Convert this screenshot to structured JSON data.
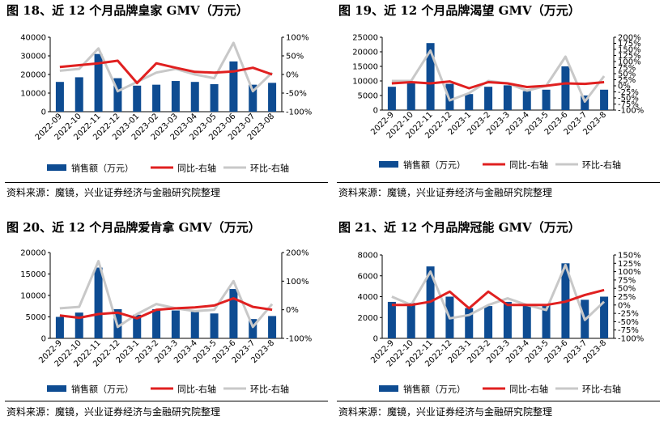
{
  "panels": [
    {
      "figure_title": "图 18、近 12 个月品牌皇家 GMV（万元）",
      "source": "资料来源：魔镜，兴业证券经济与金融研究院整理"
    },
    {
      "figure_title": "图 19、近 12 个月品牌渴望 GMV（万元）",
      "source": "资料来源：魔镜，兴业证券经济与金融研究院整理"
    },
    {
      "figure_title": "图 20、近 12 个月品牌爱肯拿 GMV（万元）",
      "source": "资料来源：魔镜，兴业证券经济与金融研究院整理"
    },
    {
      "figure_title": "图 21、近 12 个月品牌冠能 GMV（万元）",
      "source": "资料来源：魔镜，兴业证券经济与金融研究院整理"
    }
  ],
  "colors": {
    "bar": "#0e4c92",
    "yoy": "#e02020",
    "mom": "#c8c8c8"
  },
  "chart_data": [
    {
      "type": "bar",
      "categories": [
        "2022-09",
        "2022-10",
        "2022-11",
        "2022-12",
        "2023-01",
        "2023-02",
        "2023-03",
        "2023-04",
        "2023-05",
        "2023-06",
        "2023-07",
        "2023-08"
      ],
      "ylim": [
        0,
        40000
      ],
      "yticks": [
        "0",
        "10000",
        "20000",
        "30000",
        "40000"
      ],
      "y2lim": [
        -100,
        100
      ],
      "y2ticks": [
        "-100%",
        "-50%",
        "0%",
        "50%",
        "100%"
      ],
      "series": [
        {
          "name": "销售额（万元）",
          "kind": "bar",
          "axis": "left",
          "values": [
            16000,
            18500,
            31000,
            18000,
            14000,
            14500,
            16500,
            16000,
            14800,
            27000,
            14500,
            15500
          ]
        },
        {
          "name": "同比-右轴",
          "kind": "line",
          "axis": "right",
          "values": [
            20,
            25,
            30,
            37,
            -23,
            30,
            18,
            7,
            5,
            8,
            18,
            0
          ]
        },
        {
          "name": "环比-右轴",
          "kind": "line",
          "axis": "right",
          "values": [
            10,
            15,
            70,
            -45,
            -20,
            5,
            15,
            0,
            -10,
            85,
            -45,
            5
          ]
        }
      ]
    },
    {
      "type": "bar",
      "categories": [
        "2022-9",
        "2022-10",
        "2022-11",
        "2022-12",
        "2023-1",
        "2023-2",
        "2023-3",
        "2023-4",
        "2023-5",
        "2023-6",
        "2023-7",
        "2023-8"
      ],
      "ylim": [
        0,
        25000
      ],
      "yticks": [
        "0",
        "5000",
        "10000",
        "15000",
        "20000",
        "25000"
      ],
      "y2lim": [
        -100,
        200
      ],
      "y2ticks": [
        "-100%",
        "-75%",
        "-50%",
        "-25%",
        "0%",
        "25%",
        "50%",
        "75%",
        "100%",
        "125%",
        "150%",
        "175%",
        "200%"
      ],
      "series": [
        {
          "name": "销售额（万元）",
          "kind": "bar",
          "axis": "left",
          "values": [
            8000,
            9500,
            23000,
            9000,
            5500,
            8000,
            8500,
            6500,
            7000,
            15000,
            5000,
            7000
          ]
        },
        {
          "name": "同比-右轴",
          "kind": "line",
          "axis": "right",
          "values": [
            10,
            15,
            10,
            18,
            -10,
            15,
            10,
            -5,
            0,
            10,
            8,
            15
          ]
        },
        {
          "name": "环比-右轴",
          "kind": "line",
          "axis": "right",
          "values": [
            20,
            20,
            145,
            -60,
            -30,
            20,
            10,
            -20,
            0,
            120,
            -65,
            40
          ]
        }
      ]
    },
    {
      "type": "bar",
      "categories": [
        "2022-9",
        "2022-10",
        "2022-11",
        "2022-12",
        "2023-1",
        "2023-2",
        "2023-3",
        "2023-4",
        "2023-5",
        "2023-6",
        "2023-7",
        "2023-8"
      ],
      "ylim": [
        0,
        20000
      ],
      "yticks": [
        "0",
        "5000",
        "10000",
        "15000",
        "20000"
      ],
      "y2lim": [
        -100,
        200
      ],
      "y2ticks": [
        "-100%",
        "0%",
        "100%",
        "200%"
      ],
      "series": [
        {
          "name": "销售额（万元）",
          "kind": "bar",
          "axis": "left",
          "values": [
            5000,
            6000,
            16500,
            6800,
            5500,
            6800,
            6500,
            6200,
            5800,
            11500,
            4500,
            5200
          ]
        },
        {
          "name": "同比-右轴",
          "kind": "line",
          "axis": "right",
          "values": [
            -20,
            -28,
            -15,
            -10,
            -30,
            0,
            5,
            8,
            15,
            40,
            10,
            0
          ]
        },
        {
          "name": "环比-右轴",
          "kind": "line",
          "axis": "right",
          "values": [
            5,
            10,
            170,
            -60,
            -15,
            20,
            5,
            -5,
            0,
            100,
            -60,
            20
          ]
        }
      ]
    },
    {
      "type": "bar",
      "categories": [
        "2022-9",
        "2022-10",
        "2022-11",
        "2022-12",
        "2023-1",
        "2023-2",
        "2023-3",
        "2023-4",
        "2023-5",
        "2023-6",
        "2023-7",
        "2023-8"
      ],
      "ylim": [
        0,
        8000
      ],
      "yticks": [
        "0",
        "2000",
        "4000",
        "6000",
        "8000"
      ],
      "y2lim": [
        -100,
        150
      ],
      "y2ticks": [
        "-100%",
        "-75%",
        "-50%",
        "-25%",
        "0%",
        "25%",
        "50%",
        "75%",
        "100%",
        "125%",
        "150%"
      ],
      "series": [
        {
          "name": "销售额（万元）",
          "kind": "bar",
          "axis": "left",
          "values": [
            3500,
            3400,
            6900,
            4000,
            2900,
            3100,
            3500,
            3300,
            3200,
            7200,
            3700,
            4000
          ]
        },
        {
          "name": "同比-右轴",
          "kind": "line",
          "axis": "right",
          "values": [
            0,
            0,
            10,
            40,
            -10,
            40,
            0,
            0,
            0,
            10,
            30,
            45
          ]
        },
        {
          "name": "环比-右轴",
          "kind": "line",
          "axis": "right",
          "values": [
            25,
            0,
            100,
            -40,
            -30,
            0,
            20,
            0,
            -15,
            120,
            -45,
            10
          ]
        }
      ]
    }
  ]
}
